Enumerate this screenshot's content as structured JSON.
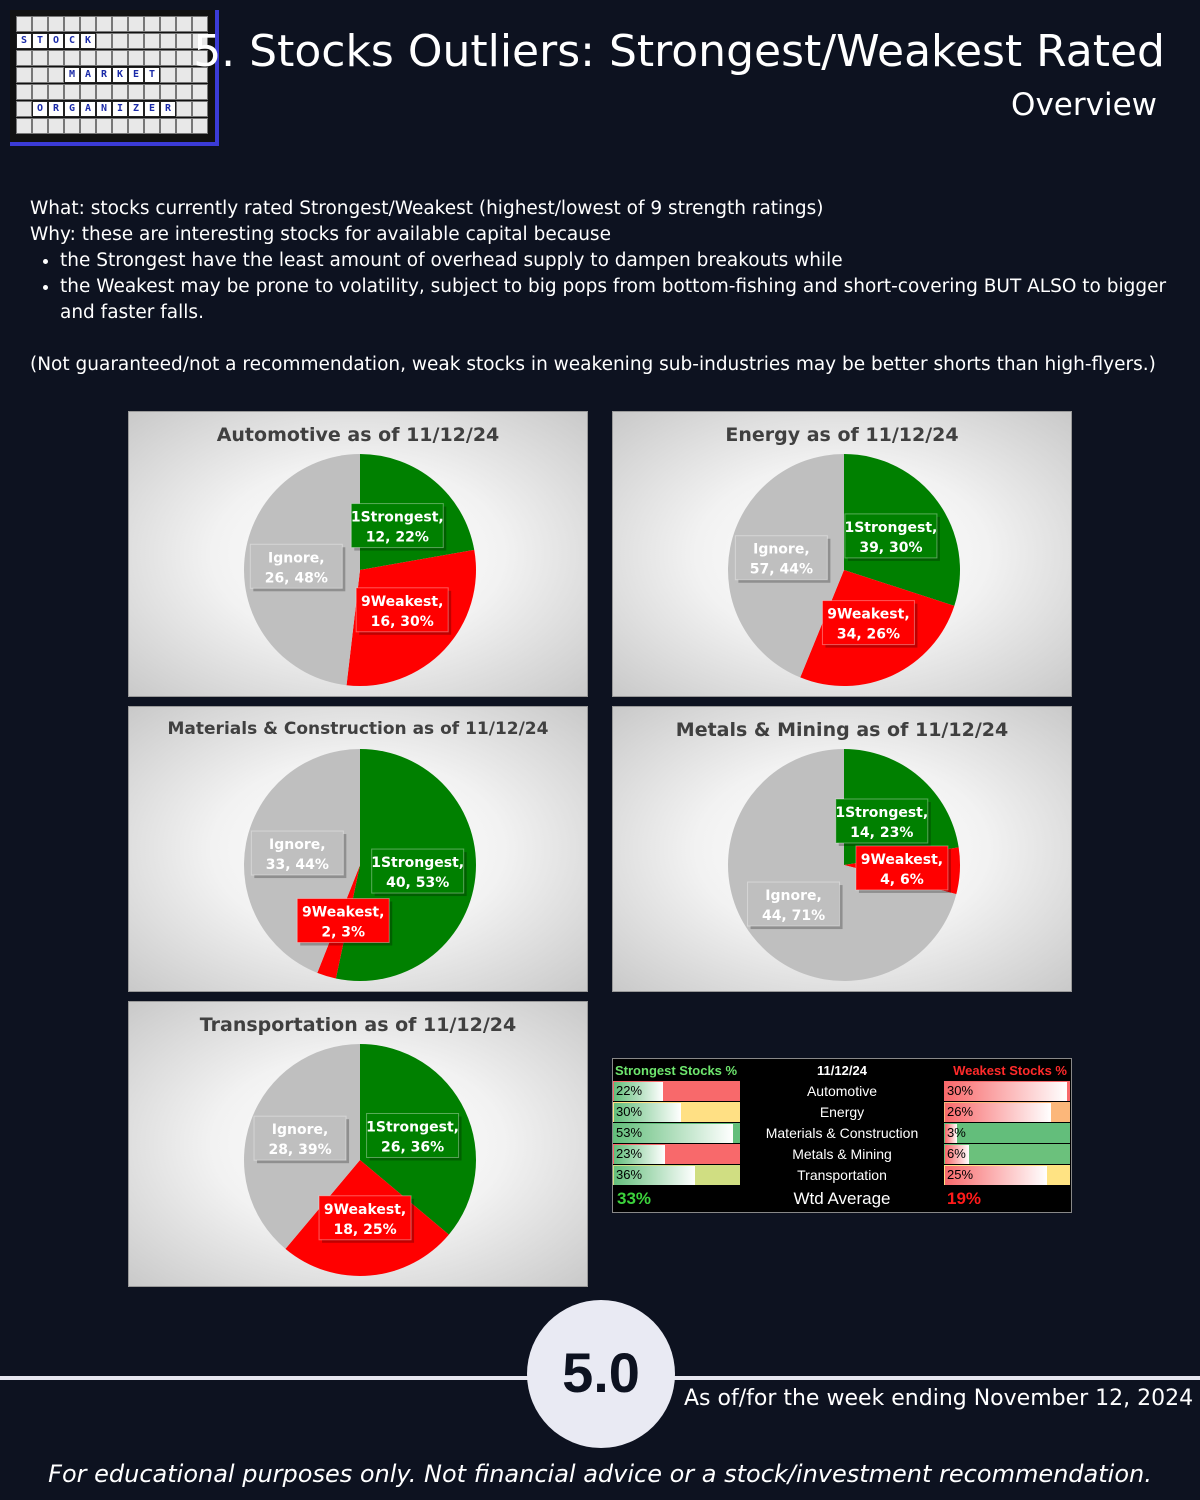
{
  "header": {
    "title": "5. Stocks Outliers: Strongest/Weakest Rated",
    "subtitle": "Overview",
    "logo_words": [
      "STOCK",
      "MARKET",
      "ORGANIZER"
    ]
  },
  "intro": {
    "what": "What: stocks currently rated Strongest/Weakest (highest/lowest of 9 strength ratings)",
    "why": "Why: these are interesting stocks for available capital because",
    "bullets": [
      "the Strongest have the least amount of overhead supply to dampen breakouts while",
      "the Weakest may be prone to volatility, subject to big pops from bottom-fishing and short-covering BUT ALSO to bigger and faster falls."
    ],
    "note": "(Not guaranteed/not a recommendation, weak stocks in weakening sub-industries may be better shorts than high-flyers.)"
  },
  "colors": {
    "strongest": "#008000",
    "weakest": "#ff0000",
    "ignore": "#bfbfbf",
    "background": "#0d1220"
  },
  "chart_data": [
    {
      "type": "pie",
      "title": "Automotive as of 11/12/24",
      "slices": [
        {
          "label": "1Strongest",
          "value": 12,
          "pct": "22%"
        },
        {
          "label": "9Weakest",
          "value": 16,
          "pct": "30%"
        },
        {
          "label": "Ignore",
          "value": 26,
          "pct": "48%"
        }
      ]
    },
    {
      "type": "pie",
      "title": "Energy as of 11/12/24",
      "slices": [
        {
          "label": "1Strongest",
          "value": 39,
          "pct": "30%"
        },
        {
          "label": "9Weakest",
          "value": 34,
          "pct": "26%"
        },
        {
          "label": "Ignore",
          "value": 57,
          "pct": "44%"
        }
      ]
    },
    {
      "type": "pie",
      "title": "Materials & Construction as of 11/12/24",
      "slices": [
        {
          "label": "1Strongest",
          "value": 40,
          "pct": "53%"
        },
        {
          "label": "9Weakest",
          "value": 2,
          "pct": "3%"
        },
        {
          "label": "Ignore",
          "value": 33,
          "pct": "44%"
        }
      ]
    },
    {
      "type": "pie",
      "title": "Metals & Mining as of 11/12/24",
      "slices": [
        {
          "label": "1Strongest",
          "value": 14,
          "pct": "23%"
        },
        {
          "label": "9Weakest",
          "value": 4,
          "pct": "6%"
        },
        {
          "label": "Ignore",
          "value": 44,
          "pct": "71%"
        }
      ]
    },
    {
      "type": "pie",
      "title": "Transportation as of 11/12/24",
      "slices": [
        {
          "label": "1Strongest",
          "value": 26,
          "pct": "36%"
        },
        {
          "label": "9Weakest",
          "value": 18,
          "pct": "25%"
        },
        {
          "label": "Ignore",
          "value": 28,
          "pct": "39%"
        }
      ]
    },
    {
      "type": "table",
      "headers": {
        "strongest": "Strongest Stocks %",
        "date": "11/12/24",
        "weakest": "Weakest Stocks %"
      },
      "rows": [
        {
          "sector": "Automotive",
          "strongest": 22,
          "strongest_text": "22%",
          "weakest": 30,
          "weakest_text": "30%",
          "strong_bg": "#f8696b",
          "weak_bg": "#f8696b"
        },
        {
          "sector": "Energy",
          "strongest": 30,
          "strongest_text": "30%",
          "weakest": 26,
          "weakest_text": "26%",
          "strong_bg": "#ffe084",
          "weak_bg": "#fcb77a"
        },
        {
          "sector": "Materials & Construction",
          "strongest": 53,
          "strongest_text": "53%",
          "weakest": 3,
          "weakest_text": "3%",
          "strong_bg": "#63be7b",
          "weak_bg": "#63be7b"
        },
        {
          "sector": "Metals & Mining",
          "strongest": 23,
          "strongest_text": "23%",
          "weakest": 6,
          "weakest_text": "6%",
          "strong_bg": "#f8696b",
          "weak_bg": "#6bc17c"
        },
        {
          "sector": "Transportation",
          "strongest": 36,
          "strongest_text": "36%",
          "weakest": 25,
          "weakest_text": "25%",
          "strong_bg": "#d0de82",
          "weak_bg": "#ffe383"
        }
      ],
      "summary": {
        "label": "Wtd Average",
        "strongest": "33%",
        "weakest": "19%"
      }
    }
  ],
  "footer": {
    "section_number": "5.0",
    "as_of": "As of/for the week ending November 12, 2024",
    "disclaimer": "For educational purposes only. Not financial advice or a stock/investment recommendation."
  }
}
